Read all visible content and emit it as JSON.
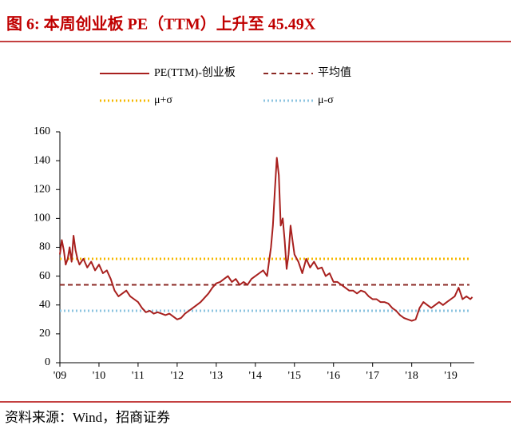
{
  "chart_data": {
    "type": "line",
    "title": "图 6:  本周创业板 PE（TTM）上升至 45.49X",
    "source": "资料来源：Wind，招商证券",
    "x": [
      2009.0,
      2009.05,
      2009.1,
      2009.15,
      2009.2,
      2009.25,
      2009.3,
      2009.35,
      2009.4,
      2009.45,
      2009.5,
      2009.6,
      2009.7,
      2009.8,
      2009.9,
      2010.0,
      2010.1,
      2010.2,
      2010.3,
      2010.4,
      2010.5,
      2010.6,
      2010.7,
      2010.8,
      2010.9,
      2011.0,
      2011.1,
      2011.2,
      2011.3,
      2011.4,
      2011.5,
      2011.6,
      2011.7,
      2011.8,
      2011.9,
      2012.0,
      2012.1,
      2012.2,
      2012.3,
      2012.4,
      2012.5,
      2012.6,
      2012.7,
      2012.8,
      2012.9,
      2013.0,
      2013.1,
      2013.2,
      2013.3,
      2013.4,
      2013.5,
      2013.6,
      2013.7,
      2013.8,
      2013.9,
      2014.0,
      2014.1,
      2014.2,
      2014.3,
      2014.35,
      2014.4,
      2014.45,
      2014.5,
      2014.55,
      2014.6,
      2014.65,
      2014.7,
      2014.75,
      2014.8,
      2014.85,
      2014.9,
      2014.95,
      2015.0,
      2015.1,
      2015.2,
      2015.3,
      2015.4,
      2015.5,
      2015.6,
      2015.7,
      2015.8,
      2015.9,
      2016.0,
      2016.1,
      2016.2,
      2016.3,
      2016.4,
      2016.5,
      2016.6,
      2016.7,
      2016.8,
      2016.9,
      2017.0,
      2017.1,
      2017.2,
      2017.3,
      2017.4,
      2017.5,
      2017.6,
      2017.7,
      2017.8,
      2017.9,
      2018.0,
      2018.1,
      2018.2,
      2018.3,
      2018.4,
      2018.5,
      2018.6,
      2018.7,
      2018.8,
      2018.9,
      2019.0,
      2019.1,
      2019.2,
      2019.25,
      2019.3,
      2019.4,
      2019.5,
      2019.55
    ],
    "series": [
      {
        "name": "PE(TTM)-创业板",
        "color": "#a8201e",
        "values": [
          75,
          85,
          78,
          68,
          72,
          80,
          70,
          88,
          78,
          72,
          68,
          72,
          66,
          70,
          64,
          68,
          62,
          64,
          58,
          50,
          46,
          48,
          50,
          46,
          44,
          42,
          38,
          35,
          36,
          34,
          35,
          34,
          33,
          34,
          32,
          30,
          31,
          34,
          36,
          38,
          40,
          42,
          45,
          48,
          52,
          55,
          56,
          58,
          60,
          56,
          58,
          54,
          56,
          54,
          58,
          60,
          62,
          64,
          60,
          70,
          80,
          95,
          120,
          142,
          130,
          95,
          100,
          85,
          65,
          75,
          95,
          85,
          75,
          70,
          62,
          72,
          66,
          70,
          65,
          66,
          60,
          62,
          56,
          56,
          54,
          52,
          50,
          50,
          48,
          50,
          49,
          46,
          44,
          44,
          42,
          42,
          41,
          38,
          36,
          33,
          31,
          30,
          29,
          30,
          38,
          42,
          40,
          38,
          40,
          42,
          40,
          42,
          44,
          46,
          52,
          48,
          44,
          46,
          44,
          45.49
        ]
      }
    ],
    "reference_lines": [
      {
        "name": "平均值",
        "color": "#8b2a25",
        "value": 54,
        "style": "dashed"
      },
      {
        "name": "μ+σ",
        "color": "#f5b800",
        "value": 72,
        "style": "dotted"
      },
      {
        "name": "μ-σ",
        "color": "#8cc4e0",
        "value": 36,
        "style": "dotted"
      }
    ],
    "xlim": [
      2009,
      2019.6
    ],
    "xticks": [
      {
        "value": 2009,
        "label": "'09"
      },
      {
        "value": 2010,
        "label": "'10"
      },
      {
        "value": 2011,
        "label": "'11"
      },
      {
        "value": 2012,
        "label": "'12"
      },
      {
        "value": 2013,
        "label": "'13"
      },
      {
        "value": 2014,
        "label": "'14"
      },
      {
        "value": 2015,
        "label": "'15"
      },
      {
        "value": 2016,
        "label": "'16"
      },
      {
        "value": 2017,
        "label": "'17"
      },
      {
        "value": 2018,
        "label": "'18"
      },
      {
        "value": 2019,
        "label": "'19"
      }
    ],
    "ylim": [
      0,
      160
    ],
    "yticks": [
      0,
      20,
      40,
      60,
      80,
      100,
      120,
      140,
      160
    ]
  }
}
